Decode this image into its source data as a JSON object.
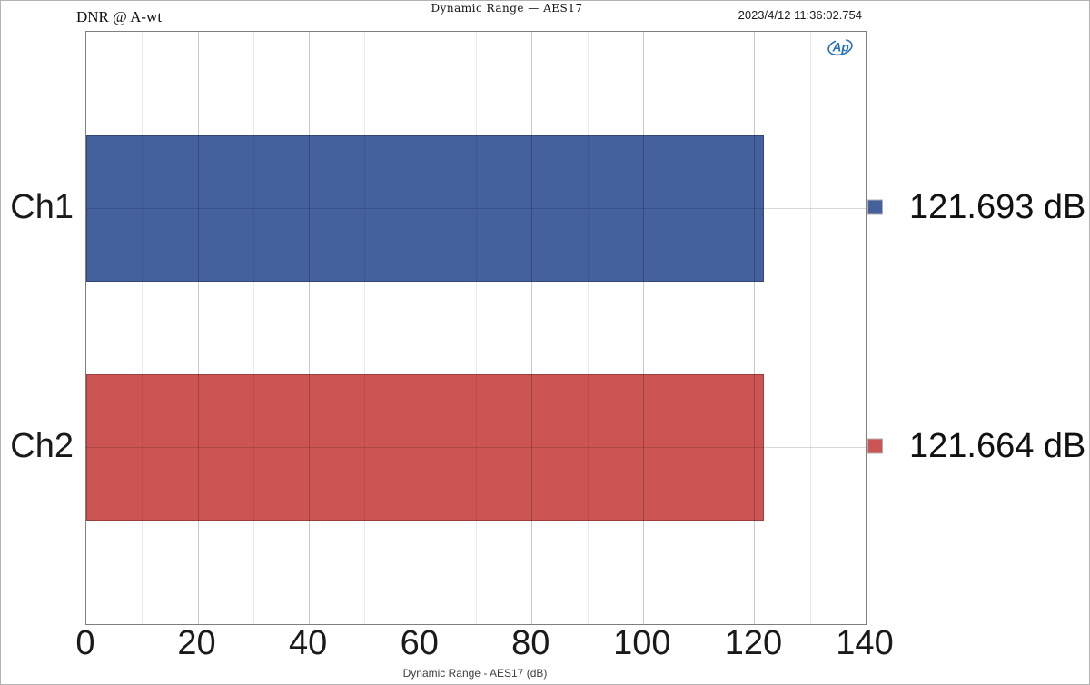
{
  "header": {
    "left_label": "DNR @ A-wt",
    "title": "Dynamic Range — AES17",
    "timestamp": "2023/4/12 11:36:02.754"
  },
  "logo": {
    "name": "audio-precision-logo",
    "text": "Ap",
    "color": "#2471B8"
  },
  "axis": {
    "xlabel": "Dynamic Range - AES17 (dB)"
  },
  "chart_data": {
    "type": "bar",
    "orientation": "horizontal",
    "title": "Dynamic Range — AES17",
    "categories": [
      "Ch1",
      "Ch2"
    ],
    "series": [
      {
        "name": "Ch1",
        "value": 121.693,
        "label": "121.693 dB",
        "color": "#45619D"
      },
      {
        "name": "Ch2",
        "value": 121.664,
        "label": "121.664 dB",
        "color": "#CC5452"
      }
    ],
    "unit": "dB",
    "xlabel": "Dynamic Range - AES17 (dB)",
    "xlim": [
      0,
      140
    ],
    "x_ticks": [
      0,
      20,
      40,
      60,
      80,
      100,
      120,
      140
    ],
    "x_minor_step": 10,
    "grid": true,
    "legend_position": "right-of-plot"
  },
  "colors": {
    "plot_border": "#7F7F7F",
    "canvas_border": "#B3B3B3",
    "grid_major": "rgba(0,0,0,0.21)",
    "grid_minor": "rgba(0,0,0,0.08)",
    "text": "#1A1A1A"
  }
}
